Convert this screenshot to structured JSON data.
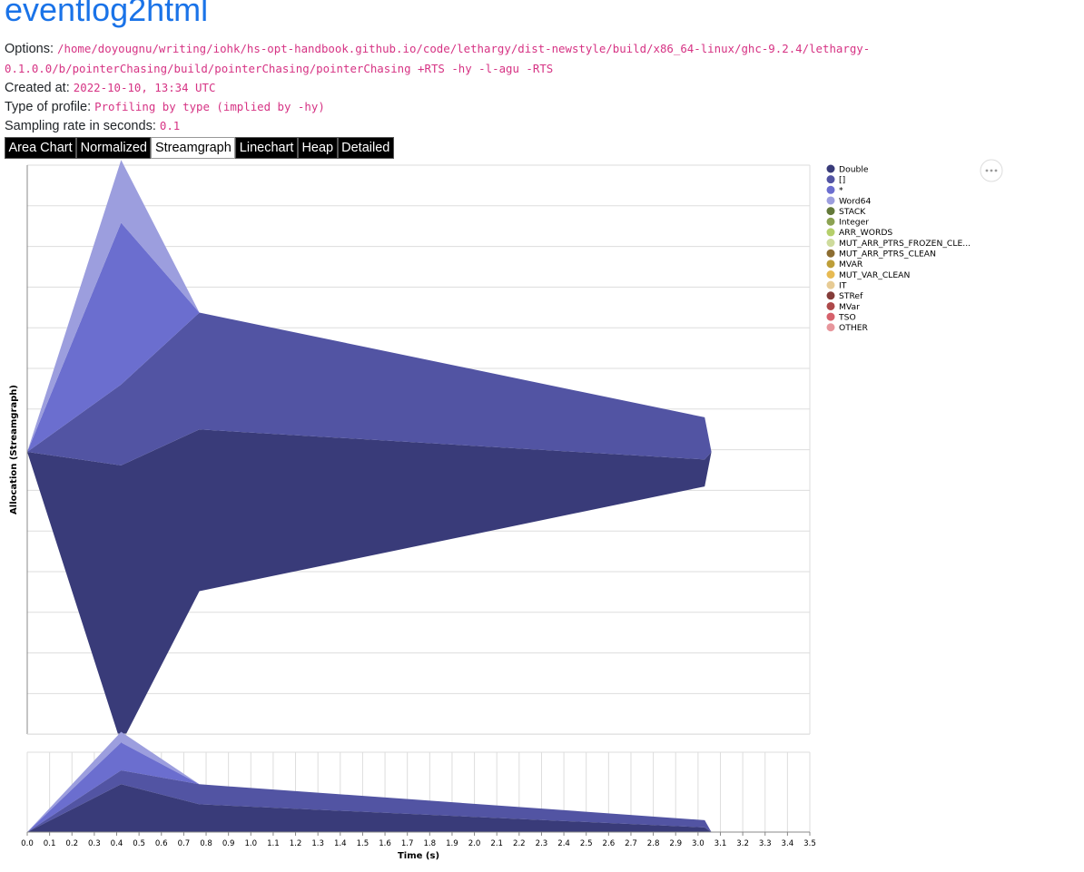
{
  "page": {
    "title": "eventlog2html",
    "options_label": "Options:",
    "options_value": "/home/doyougnu/writing/iohk/hs-opt-handbook.github.io/code/lethargy/dist-newstyle/build/x86_64-linux/ghc-9.2.4/lethargy-0.1.0.0/b/pointerChasing/build/pointerChasing/pointerChasing +RTS -hy -l-agu -RTS",
    "created_label": "Created at:",
    "created_value": "2022-10-10, 13:34 UTC",
    "type_label": "Type of profile:",
    "type_value": "Profiling by type (implied by -hy)",
    "rate_label": "Sampling rate in seconds:",
    "rate_value": "0.1"
  },
  "tabs": [
    {
      "label": "Area Chart",
      "active": false
    },
    {
      "label": "Normalized",
      "active": false
    },
    {
      "label": "Streamgraph",
      "active": true
    },
    {
      "label": "Linechart",
      "active": false
    },
    {
      "label": "Heap",
      "active": false
    },
    {
      "label": "Detailed",
      "active": false
    }
  ],
  "chart_data": {
    "type": "area",
    "stack": "center",
    "ylabel": "Allocation (Streamgraph)",
    "xlabel": "Time (s)",
    "xlim": [
      0,
      3.5
    ],
    "x_ticks": [
      "0.0",
      "0.1",
      "0.2",
      "0.3",
      "0.4",
      "0.5",
      "0.6",
      "0.7",
      "0.8",
      "0.9",
      "1.0",
      "1.1",
      "1.2",
      "1.3",
      "1.4",
      "1.5",
      "1.6",
      "1.7",
      "1.8",
      "1.9",
      "2.0",
      "2.1",
      "2.2",
      "2.3",
      "2.4",
      "2.5",
      "2.6",
      "2.7",
      "2.8",
      "2.9",
      "3.0",
      "3.1",
      "3.2",
      "3.3",
      "3.4",
      "3.5"
    ],
    "x": [
      0.0,
      0.42,
      0.77,
      3.03,
      3.06
    ],
    "series": [
      {
        "name": "Double",
        "color": "#393b79",
        "values": [
          0,
          31,
          18,
          3,
          0
        ]
      },
      {
        "name": "[]",
        "color": "#5254a3",
        "values": [
          0,
          9,
          13,
          4.7,
          0
        ]
      },
      {
        "name": "*",
        "color": "#6b6ecf",
        "values": [
          0,
          18,
          0,
          0,
          0
        ]
      },
      {
        "name": "Word64",
        "color": "#9c9ede",
        "values": [
          0,
          7,
          0,
          0,
          0
        ]
      }
    ],
    "legend": [
      {
        "name": "Double",
        "color": "#393b79"
      },
      {
        "name": "[]",
        "color": "#5254a3"
      },
      {
        "name": "*",
        "color": "#6b6ecf"
      },
      {
        "name": "Word64",
        "color": "#9c9ede"
      },
      {
        "name": "STACK",
        "color": "#637939"
      },
      {
        "name": "Integer",
        "color": "#8ca252"
      },
      {
        "name": "ARR_WORDS",
        "color": "#b5cf6b"
      },
      {
        "name": "MUT_ARR_PTRS_FROZEN_CLE...",
        "color": "#cedb9c"
      },
      {
        "name": "MUT_ARR_PTRS_CLEAN",
        "color": "#8c6d31"
      },
      {
        "name": "MVAR",
        "color": "#bd9e39"
      },
      {
        "name": "MUT_VAR_CLEAN",
        "color": "#e7ba52"
      },
      {
        "name": "IT",
        "color": "#e7cb94"
      },
      {
        "name": "STRef",
        "color": "#843c39"
      },
      {
        "name": "MVar",
        "color": "#ad494a"
      },
      {
        "name": "TSO",
        "color": "#d6616b"
      },
      {
        "name": "OTHER",
        "color": "#e7969c"
      }
    ],
    "legend_position": "right",
    "grid": true
  }
}
